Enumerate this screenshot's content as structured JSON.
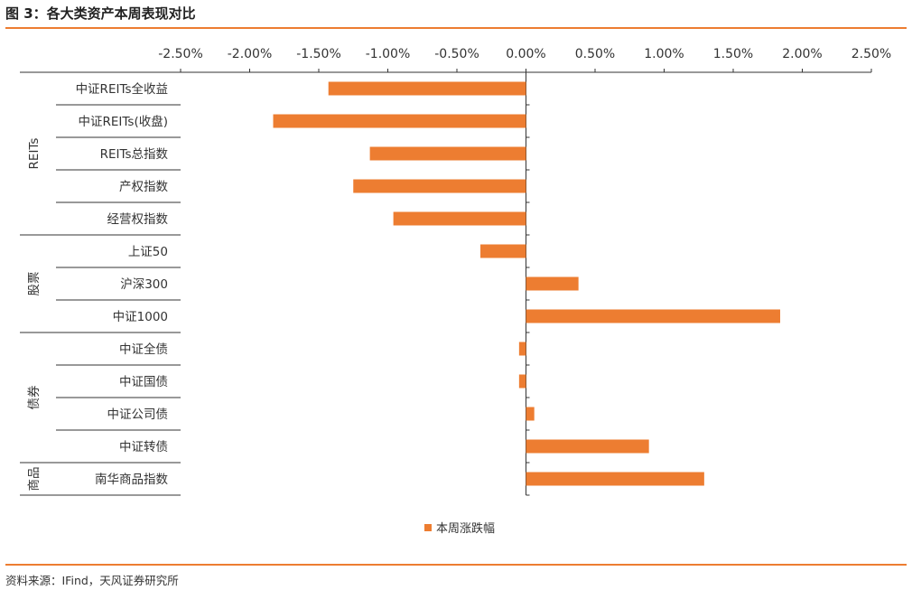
{
  "title": "图 3：各大类资产本周表现对比",
  "source": "资料来源：IFind，天风证券研究所",
  "colors": {
    "bar": "#ed7d31",
    "rule": "#ed7d31",
    "axis": "#333333"
  },
  "chart_data": {
    "type": "bar",
    "orientation": "horizontal",
    "xlim": [
      -2.5,
      2.5
    ],
    "x_ticks": [
      "-2.50%",
      "-2.00%",
      "-1.50%",
      "-1.00%",
      "-0.50%",
      "0.00%",
      "0.50%",
      "1.00%",
      "1.50%",
      "2.00%",
      "2.50%"
    ],
    "x_tick_values": [
      -2.5,
      -2.0,
      -1.5,
      -1.0,
      -0.5,
      0.0,
      0.5,
      1.0,
      1.5,
      2.0,
      2.5
    ],
    "x_axis_position": "top",
    "categories": [
      "中证REITs全收益",
      "中证REITs(收盘)",
      "REITs总指数",
      "产权指数",
      "经营权指数",
      "上证50",
      "沪深300",
      "中证1000",
      "中证全债",
      "中证国债",
      "中证公司债",
      "中证转债",
      "南华商品指数"
    ],
    "groups": [
      {
        "label": "REITs",
        "start": 0,
        "end": 4
      },
      {
        "label": "股票",
        "start": 5,
        "end": 7
      },
      {
        "label": "债券",
        "start": 8,
        "end": 11
      },
      {
        "label": "商品",
        "start": 12,
        "end": 12
      }
    ],
    "series": [
      {
        "name": "本周涨跌幅",
        "values": [
          -1.43,
          -1.83,
          -1.13,
          -1.25,
          -0.96,
          -0.33,
          0.38,
          1.84,
          -0.05,
          -0.05,
          0.06,
          0.89,
          1.29
        ]
      }
    ],
    "legend_position": "bottom-center",
    "grid": false
  }
}
